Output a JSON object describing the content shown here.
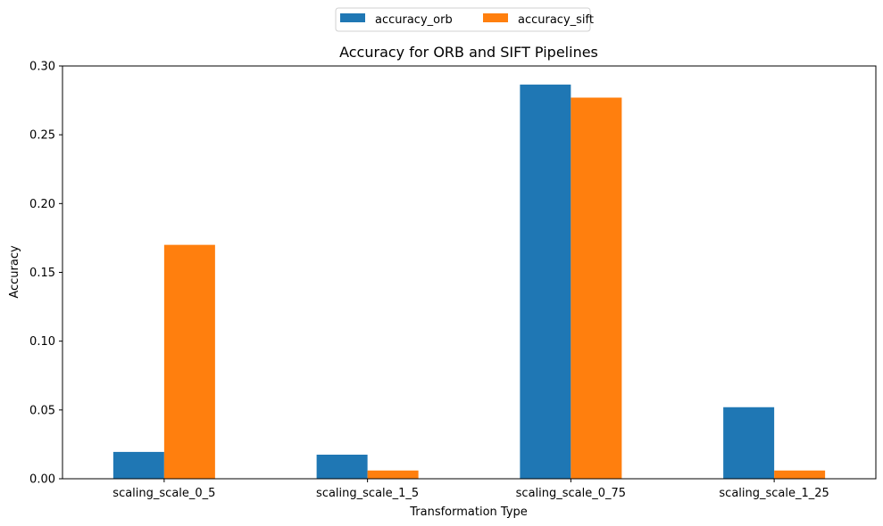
{
  "chart_data": {
    "type": "bar",
    "title": "Accuracy for ORB and SIFT Pipelines",
    "xlabel": "Transformation Type",
    "ylabel": "Accuracy",
    "categories": [
      "scaling_scale_0_5",
      "scaling_scale_1_5",
      "scaling_scale_0_75",
      "scaling_scale_1_25"
    ],
    "series": [
      {
        "name": "accuracy_orb",
        "color": "#1f77b4",
        "values": [
          0.0195,
          0.0175,
          0.2865,
          0.052
        ]
      },
      {
        "name": "accuracy_sift",
        "color": "#ff7f0e",
        "values": [
          0.17,
          0.006,
          0.277,
          0.006
        ]
      }
    ],
    "ylim": [
      0,
      0.3
    ],
    "yticks": [
      "0.00",
      "0.05",
      "0.10",
      "0.15",
      "0.20",
      "0.25",
      "0.30"
    ],
    "grid": false,
    "legend_position": "top-center"
  }
}
